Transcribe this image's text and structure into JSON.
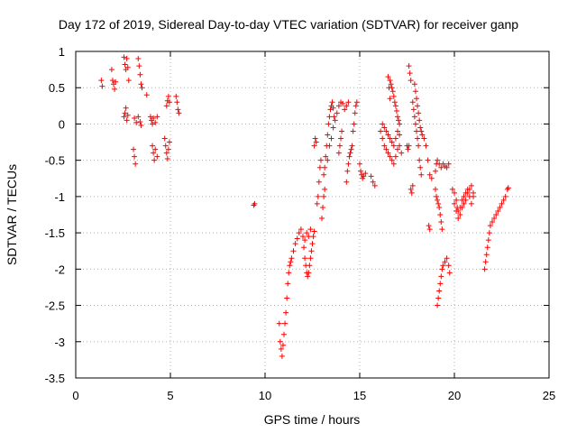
{
  "chart_data": {
    "type": "scatter",
    "title": "Day 172 of 2019, Sidereal Day-to-day VTEC variation (SDTVAR) for receiver ganp",
    "xlabel": "GPS time / hours",
    "ylabel": "SDTVAR / TECUs",
    "xlim": [
      0,
      25
    ],
    "ylim": [
      -3.5,
      1
    ],
    "xticks": [
      0,
      5,
      10,
      15,
      20,
      25
    ],
    "xtick_labels": [
      "0",
      "5",
      "10",
      "15",
      "20",
      "25"
    ],
    "yticks": [
      1,
      0.5,
      0,
      -0.5,
      -1,
      -1.5,
      -2,
      -2.5,
      -3,
      -3.5
    ],
    "ytick_labels": [
      "1",
      "0.5",
      "0",
      "-0.5",
      "-1",
      "-1.5",
      "-2",
      "-2.5",
      "-3",
      "-3.5"
    ],
    "grid": true,
    "marker": "+",
    "marker_color": "#ff0000",
    "segments": [
      [
        [
          1.35,
          0.6
        ],
        [
          1.4,
          0.52
        ]
      ],
      [
        [
          1.9,
          0.75
        ],
        [
          1.95,
          0.6
        ],
        [
          2.0,
          0.55
        ],
        [
          2.05,
          0.48
        ],
        [
          2.1,
          0.58
        ]
      ],
      [
        [
          2.55,
          0.92
        ],
        [
          2.6,
          0.82
        ],
        [
          2.65,
          0.75
        ],
        [
          2.7,
          0.9
        ],
        [
          2.75,
          0.78
        ],
        [
          2.8,
          0.6
        ]
      ],
      [
        [
          2.55,
          0.1
        ],
        [
          2.6,
          0.15
        ],
        [
          2.65,
          0.22
        ],
        [
          2.7,
          0.05
        ],
        [
          2.75,
          0.12
        ]
      ],
      [
        [
          3.05,
          -0.35
        ],
        [
          3.1,
          -0.45
        ],
        [
          3.15,
          -0.55
        ]
      ],
      [
        [
          3.1,
          0.08
        ],
        [
          3.2,
          0.02
        ],
        [
          3.3,
          0.1
        ],
        [
          3.4,
          0.03
        ],
        [
          3.45,
          -0.02
        ]
      ],
      [
        [
          3.3,
          0.9
        ],
        [
          3.35,
          0.8
        ],
        [
          3.4,
          0.68
        ],
        [
          3.45,
          0.55
        ],
        [
          3.5,
          0.5
        ]
      ],
      [
        [
          3.75,
          0.4
        ]
      ],
      [
        [
          3.95,
          0.1
        ],
        [
          4.0,
          0.05
        ],
        [
          4.05,
          0.0
        ],
        [
          4.1,
          0.08
        ],
        [
          4.2,
          0.02
        ],
        [
          4.3,
          0.1
        ]
      ],
      [
        [
          4.05,
          -0.3
        ],
        [
          4.1,
          -0.4
        ],
        [
          4.15,
          -0.5
        ],
        [
          4.2,
          -0.35
        ],
        [
          4.3,
          -0.45
        ]
      ],
      [
        [
          4.7,
          -0.2
        ],
        [
          4.75,
          -0.3
        ],
        [
          4.8,
          -0.4
        ],
        [
          4.85,
          -0.48
        ],
        [
          4.9,
          -0.35
        ],
        [
          4.95,
          -0.25
        ]
      ],
      [
        [
          4.8,
          0.25
        ],
        [
          4.85,
          0.32
        ],
        [
          4.9,
          0.38
        ],
        [
          4.95,
          0.3
        ]
      ],
      [
        [
          5.3,
          0.38
        ],
        [
          5.35,
          0.3
        ],
        [
          5.4,
          0.2
        ],
        [
          5.45,
          0.15
        ]
      ],
      [
        [
          9.4,
          -1.12
        ],
        [
          9.45,
          -1.1
        ]
      ],
      [
        [
          10.75,
          -2.75
        ],
        [
          10.8,
          -3.0
        ],
        [
          10.85,
          -3.1
        ],
        [
          10.9,
          -3.2
        ],
        [
          10.95,
          -3.05
        ],
        [
          11.0,
          -2.9
        ],
        [
          11.05,
          -2.75
        ],
        [
          11.1,
          -2.6
        ],
        [
          11.15,
          -2.4
        ],
        [
          11.2,
          -2.2
        ],
        [
          11.25,
          -2.05
        ],
        [
          11.3,
          -1.95
        ],
        [
          11.35,
          -1.9
        ],
        [
          11.4,
          -1.85
        ],
        [
          11.5,
          -1.75
        ],
        [
          11.6,
          -1.65
        ],
        [
          11.7,
          -1.58
        ],
        [
          11.8,
          -1.5
        ],
        [
          11.9,
          -1.45
        ]
      ],
      [
        [
          12.0,
          -1.55
        ],
        [
          12.05,
          -1.7
        ],
        [
          12.1,
          -1.85
        ],
        [
          12.15,
          -1.95
        ],
        [
          12.2,
          -2.05
        ],
        [
          12.25,
          -2.1
        ],
        [
          12.3,
          -2.05
        ],
        [
          12.35,
          -1.95
        ],
        [
          12.4,
          -1.85
        ],
        [
          12.45,
          -1.75
        ],
        [
          12.5,
          -1.65
        ],
        [
          12.55,
          -1.55
        ],
        [
          12.6,
          -1.48
        ]
      ],
      [
        [
          12.1,
          -1.6
        ],
        [
          12.2,
          -1.5
        ],
        [
          12.3,
          -1.55
        ],
        [
          12.4,
          -1.45
        ]
      ],
      [
        [
          12.6,
          -0.3
        ],
        [
          12.65,
          -0.2
        ],
        [
          12.7,
          -0.25
        ]
      ],
      [
        [
          12.75,
          -1.1
        ],
        [
          12.8,
          -1.0
        ],
        [
          12.85,
          -0.8
        ],
        [
          12.9,
          -0.6
        ],
        [
          12.95,
          -0.5
        ]
      ],
      [
        [
          13.0,
          -1.3
        ],
        [
          13.05,
          -1.15
        ],
        [
          13.1,
          -1.0
        ],
        [
          13.15,
          -0.9
        ]
      ],
      [
        [
          13.1,
          -0.7
        ],
        [
          13.15,
          -0.6
        ],
        [
          13.2,
          -0.45
        ],
        [
          13.25,
          -0.3
        ],
        [
          13.3,
          -0.15
        ],
        [
          13.35,
          0.0
        ],
        [
          13.4,
          0.1
        ],
        [
          13.45,
          0.2
        ],
        [
          13.5,
          0.25
        ],
        [
          13.55,
          0.3
        ],
        [
          13.6,
          0.22
        ],
        [
          13.65,
          0.1
        ]
      ],
      [
        [
          13.3,
          -0.5
        ],
        [
          13.4,
          -0.3
        ],
        [
          13.5,
          -0.2
        ],
        [
          13.6,
          -0.05
        ],
        [
          13.7,
          0.05
        ],
        [
          13.8,
          0.15
        ],
        [
          13.9,
          0.25
        ],
        [
          14.0,
          0.3
        ],
        [
          14.1,
          0.28
        ],
        [
          14.2,
          0.2
        ],
        [
          14.3,
          0.25
        ],
        [
          14.4,
          0.3
        ]
      ],
      [
        [
          13.9,
          -0.4
        ],
        [
          13.95,
          -0.3
        ],
        [
          14.0,
          -0.2
        ],
        [
          14.05,
          -0.1
        ]
      ],
      [
        [
          14.3,
          -0.8
        ],
        [
          14.35,
          -0.65
        ],
        [
          14.4,
          -0.55
        ],
        [
          14.45,
          -0.45
        ],
        [
          14.5,
          -0.4
        ],
        [
          14.55,
          -0.35
        ],
        [
          14.6,
          -0.3
        ],
        [
          14.65,
          -0.1
        ],
        [
          14.7,
          0.0
        ],
        [
          14.75,
          0.15
        ],
        [
          14.8,
          0.25
        ],
        [
          14.85,
          0.3
        ]
      ],
      [
        [
          15.0,
          -0.55
        ],
        [
          15.05,
          -0.65
        ],
        [
          15.1,
          -0.7
        ],
        [
          15.15,
          -0.75
        ],
        [
          15.2,
          -0.72
        ],
        [
          15.3,
          -0.68
        ]
      ],
      [
        [
          15.6,
          -0.72
        ],
        [
          15.7,
          -0.8
        ],
        [
          15.8,
          -0.85
        ]
      ],
      [
        [
          16.1,
          -0.1
        ],
        [
          16.2,
          -0.2
        ],
        [
          16.3,
          -0.3
        ],
        [
          16.4,
          -0.35
        ],
        [
          16.5,
          -0.4
        ],
        [
          16.6,
          -0.45
        ],
        [
          16.7,
          -0.5
        ],
        [
          16.8,
          -0.55
        ],
        [
          16.9,
          -0.45
        ],
        [
          17.0,
          -0.35
        ],
        [
          17.1,
          -0.3
        ],
        [
          17.2,
          -0.4
        ]
      ],
      [
        [
          16.2,
          0.0
        ],
        [
          16.3,
          -0.05
        ],
        [
          16.4,
          -0.1
        ],
        [
          16.5,
          -0.15
        ],
        [
          16.6,
          -0.2
        ],
        [
          16.7,
          -0.25
        ],
        [
          16.8,
          -0.3
        ],
        [
          16.9,
          -0.2
        ],
        [
          17.0,
          -0.1
        ],
        [
          17.1,
          -0.15
        ]
      ],
      [
        [
          16.6,
          0.6
        ],
        [
          16.65,
          0.55
        ],
        [
          16.7,
          0.5
        ],
        [
          16.75,
          0.45
        ],
        [
          16.8,
          0.38
        ],
        [
          16.85,
          0.3
        ],
        [
          16.9,
          0.25
        ],
        [
          16.95,
          0.18
        ],
        [
          17.0,
          0.1
        ],
        [
          17.05,
          0.05
        ],
        [
          17.1,
          0.0
        ]
      ],
      [
        [
          16.5,
          0.65
        ],
        [
          16.55,
          0.5
        ],
        [
          16.6,
          0.35
        ]
      ],
      [
        [
          17.6,
          0.8
        ],
        [
          17.65,
          0.7
        ],
        [
          17.7,
          0.6
        ]
      ],
      [
        [
          17.5,
          -0.3
        ],
        [
          17.55,
          -0.35
        ],
        [
          17.6,
          -0.3
        ]
      ],
      [
        [
          17.7,
          -0.9
        ],
        [
          17.75,
          -0.95
        ],
        [
          17.8,
          -0.85
        ]
      ],
      [
        [
          17.8,
          0.3
        ],
        [
          17.85,
          0.2
        ],
        [
          17.9,
          0.1
        ],
        [
          17.95,
          0.0
        ],
        [
          18.0,
          -0.1
        ],
        [
          18.05,
          -0.2
        ],
        [
          18.1,
          -0.3
        ],
        [
          18.15,
          -0.5
        ],
        [
          18.2,
          -0.6
        ],
        [
          18.25,
          -0.7
        ]
      ],
      [
        [
          17.9,
          0.55
        ],
        [
          17.95,
          0.45
        ],
        [
          18.0,
          0.35
        ],
        [
          18.05,
          0.25
        ],
        [
          18.1,
          0.15
        ],
        [
          18.15,
          0.05
        ],
        [
          18.2,
          -0.05
        ],
        [
          18.25,
          -0.1
        ],
        [
          18.3,
          -0.15
        ],
        [
          18.4,
          -0.2
        ],
        [
          18.5,
          -0.3
        ],
        [
          18.6,
          -0.5
        ],
        [
          18.7,
          -0.7
        ],
        [
          18.8,
          -0.75
        ]
      ],
      [
        [
          18.65,
          -1.4
        ],
        [
          18.7,
          -1.45
        ]
      ],
      [
        [
          19.0,
          -0.9
        ],
        [
          19.05,
          -1.0
        ],
        [
          19.1,
          -1.05
        ],
        [
          19.15,
          -1.1
        ]
      ],
      [
        [
          19.0,
          -0.65
        ],
        [
          19.05,
          -0.55
        ],
        [
          19.1,
          -0.5
        ],
        [
          19.2,
          -0.55
        ],
        [
          19.3,
          -0.6
        ],
        [
          19.4,
          -0.55
        ],
        [
          19.5,
          -0.58
        ],
        [
          19.6,
          -0.6
        ],
        [
          19.7,
          -0.55
        ]
      ],
      [
        [
          19.1,
          -2.5
        ],
        [
          19.15,
          -2.4
        ],
        [
          19.2,
          -2.3
        ],
        [
          19.25,
          -2.2
        ],
        [
          19.3,
          -2.1
        ],
        [
          19.35,
          -2.0
        ],
        [
          19.4,
          -1.95
        ],
        [
          19.5,
          -1.9
        ],
        [
          19.6,
          -1.85
        ],
        [
          19.7,
          -1.95
        ],
        [
          19.75,
          -2.05
        ]
      ],
      [
        [
          19.2,
          -1.15
        ],
        [
          19.25,
          -1.25
        ],
        [
          19.3,
          -1.35
        ],
        [
          19.35,
          -1.45
        ]
      ],
      [
        [
          19.9,
          -0.9
        ],
        [
          20.0,
          -0.95
        ],
        [
          20.1,
          -1.05
        ],
        [
          20.15,
          -1.15
        ],
        [
          20.2,
          -1.2
        ],
        [
          20.3,
          -1.15
        ],
        [
          20.4,
          -1.05
        ],
        [
          20.5,
          -1.0
        ],
        [
          20.6,
          -0.95
        ],
        [
          20.7,
          -0.9
        ],
        [
          20.8,
          -1.0
        ],
        [
          20.9,
          -1.1
        ],
        [
          21.0,
          -1.0
        ]
      ],
      [
        [
          20.0,
          -1.1
        ],
        [
          20.1,
          -1.2
        ],
        [
          20.2,
          -1.3
        ],
        [
          20.3,
          -1.25
        ],
        [
          20.4,
          -1.15
        ],
        [
          20.5,
          -1.1
        ],
        [
          20.6,
          -1.05
        ],
        [
          20.7,
          -0.95
        ],
        [
          20.8,
          -0.9
        ],
        [
          20.9,
          -0.85
        ],
        [
          21.0,
          -0.95
        ]
      ],
      [
        [
          21.6,
          -2.0
        ],
        [
          21.65,
          -1.9
        ],
        [
          21.7,
          -1.8
        ],
        [
          21.75,
          -1.7
        ],
        [
          21.8,
          -1.6
        ],
        [
          21.85,
          -1.5
        ],
        [
          21.9,
          -1.4
        ]
      ],
      [
        [
          22.0,
          -1.35
        ],
        [
          22.1,
          -1.3
        ],
        [
          22.2,
          -1.25
        ],
        [
          22.3,
          -1.2
        ],
        [
          22.4,
          -1.15
        ],
        [
          22.5,
          -1.1
        ],
        [
          22.6,
          -1.05
        ],
        [
          22.7,
          -1.0
        ],
        [
          22.8,
          -0.9
        ],
        [
          22.85,
          -0.88
        ]
      ]
    ]
  }
}
